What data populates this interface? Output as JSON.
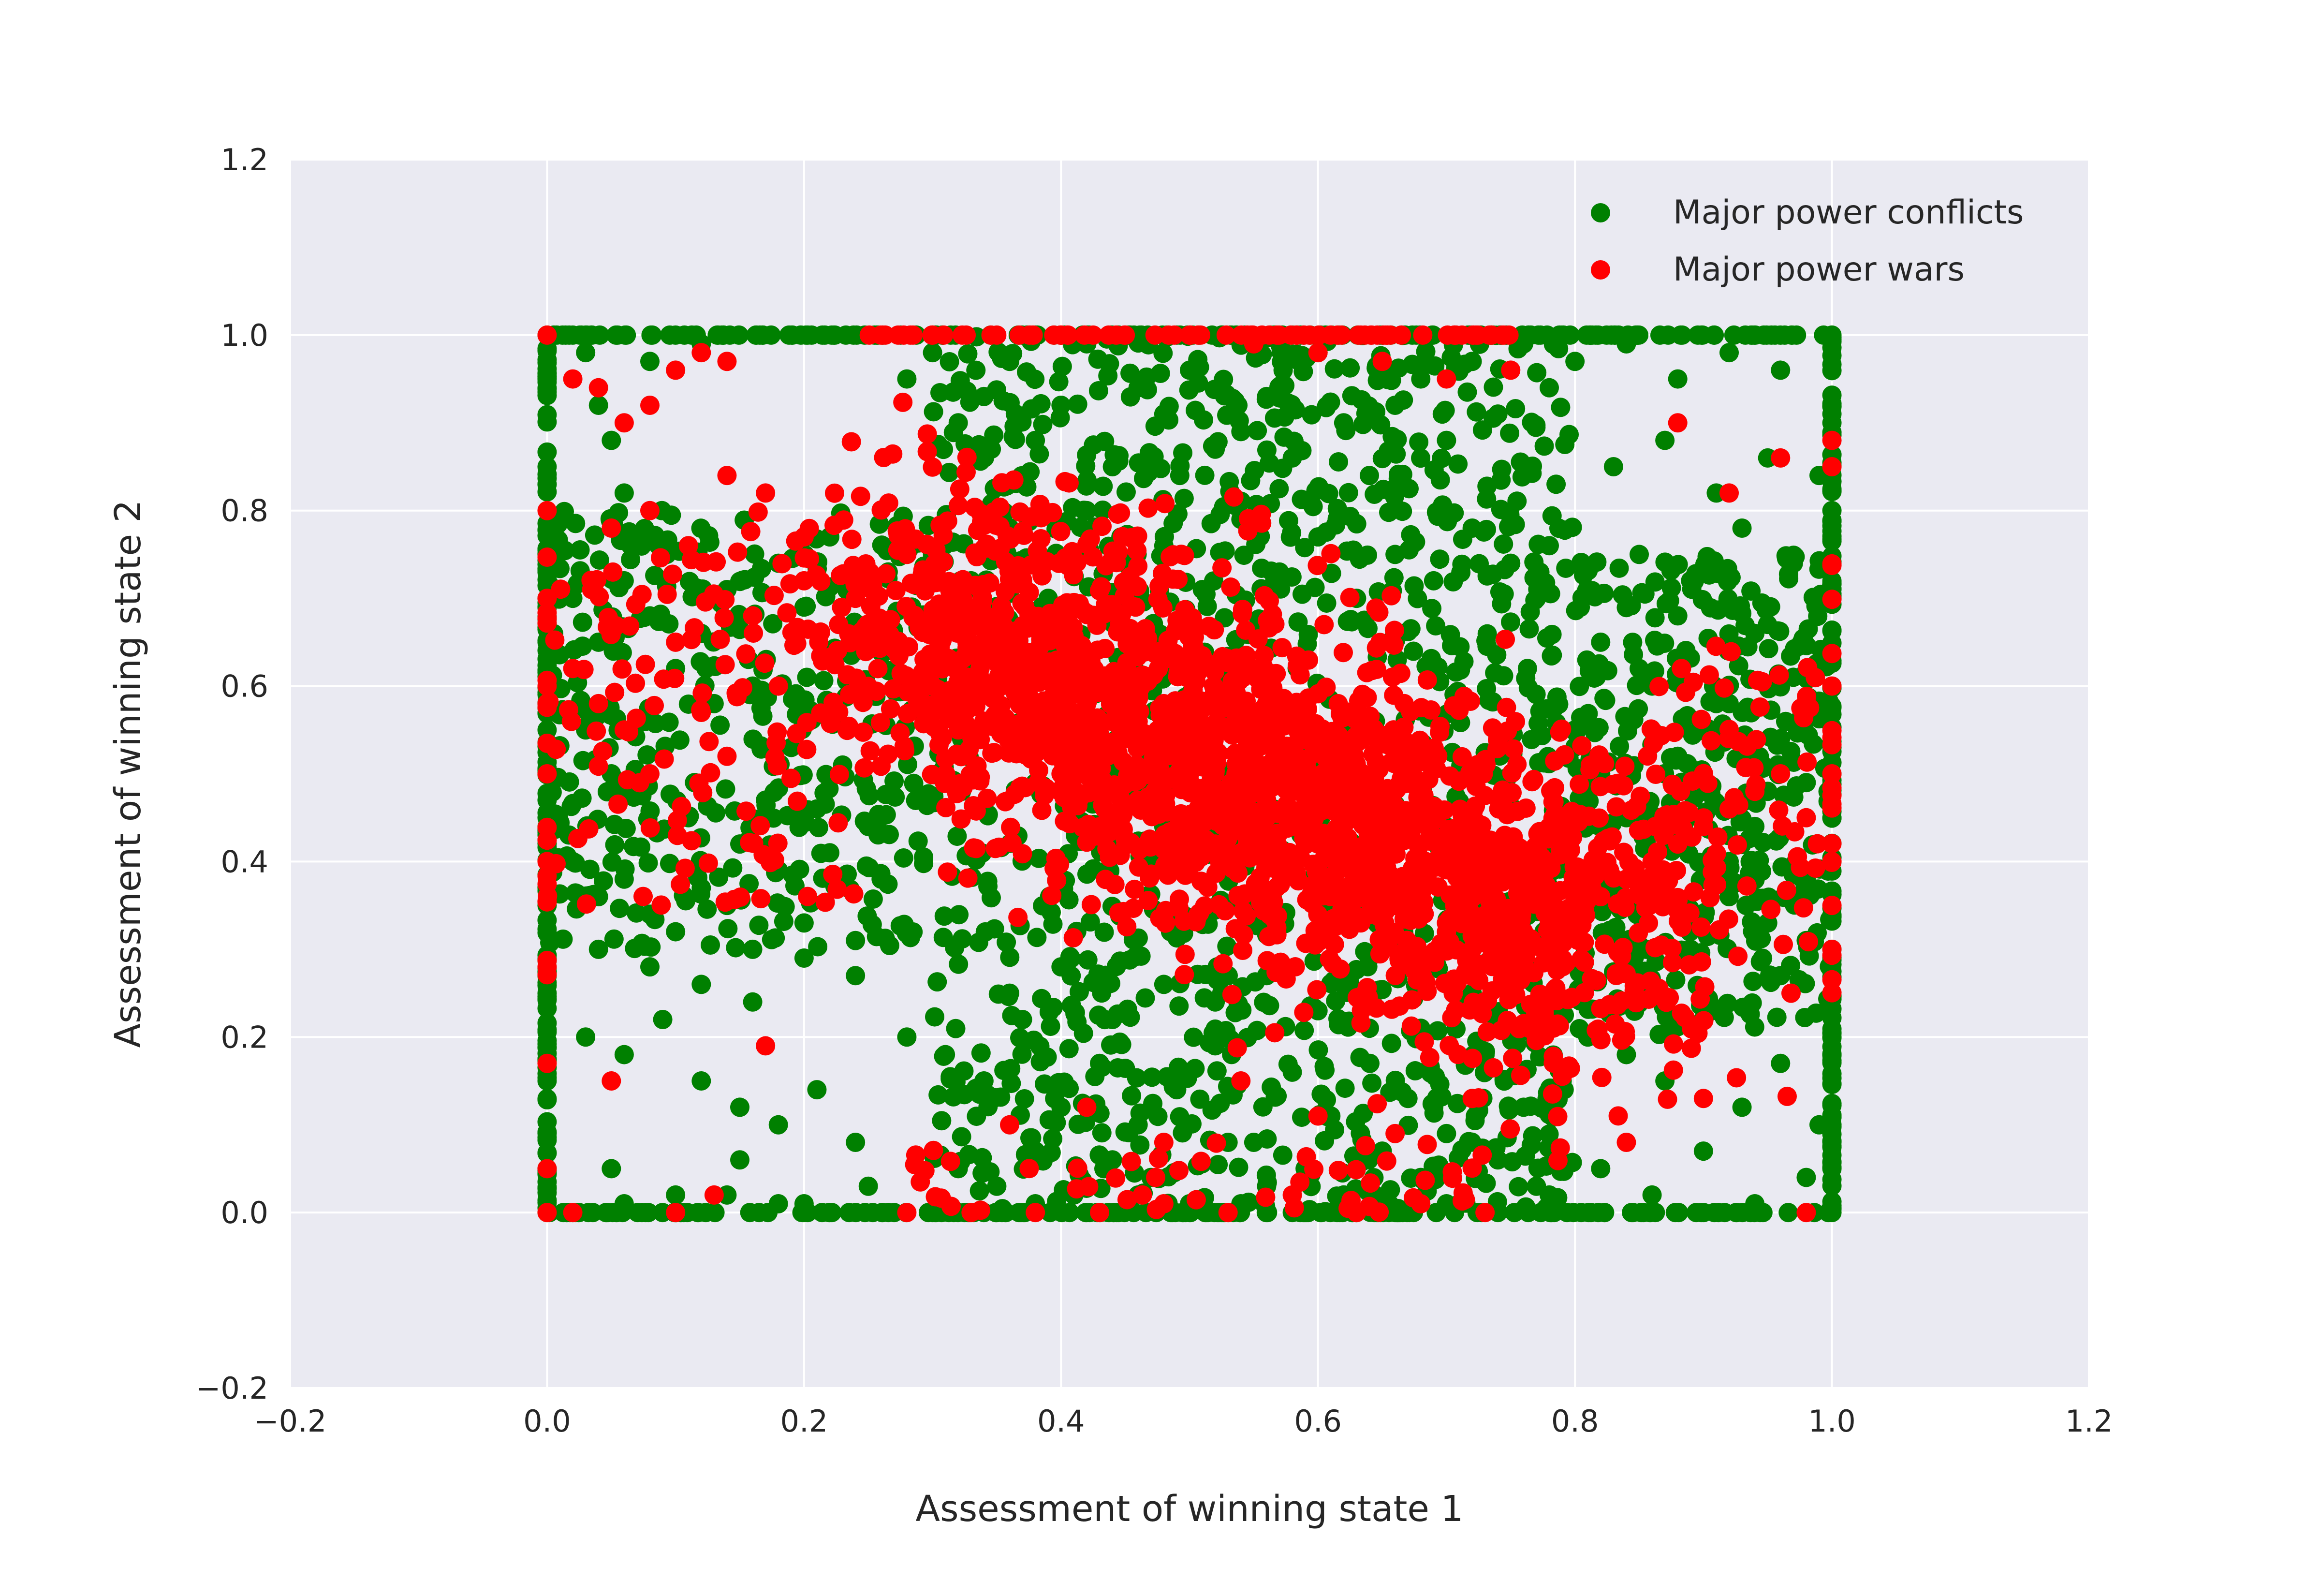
{
  "chart_data": {
    "type": "scatter",
    "title": "",
    "xlabel": "Assessment of winning state 1",
    "ylabel": "Assessment of winning state 2",
    "xlim": [
      -0.2,
      1.2
    ],
    "ylim": [
      -0.2,
      1.2
    ],
    "xticks": [
      -0.2,
      0.0,
      0.2,
      0.4,
      0.6,
      0.8,
      1.0,
      1.2
    ],
    "yticks": [
      -0.2,
      0.0,
      0.2,
      0.4,
      0.6,
      0.8,
      1.0,
      1.2
    ],
    "xtick_labels": [
      "−0.2",
      "0.0",
      "0.2",
      "0.4",
      "0.6",
      "0.8",
      "1.0",
      "1.2"
    ],
    "ytick_labels": [
      "−0.2",
      "0.0",
      "0.2",
      "0.4",
      "0.6",
      "0.8",
      "1.0",
      "1.2"
    ],
    "grid": true,
    "background": "#eaeaf2",
    "legend_position": "top-right",
    "series": [
      {
        "name": "Major power conflicts",
        "color": "#008000",
        "x": [
          0.0,
          0.0,
          0.0,
          0.0,
          0.0,
          0.0,
          0.0,
          0.0,
          0.0,
          0.0,
          0.0,
          0.0,
          0.02,
          0.03,
          0.04,
          0.05,
          0.06,
          0.08,
          0.1,
          0.12,
          0.02,
          0.04,
          0.06,
          0.08,
          0.1,
          0.12,
          0.14,
          0.16,
          0.18,
          0.2,
          0.22,
          0.24,
          0.03,
          0.05,
          0.07,
          0.09,
          0.11,
          0.13,
          0.15,
          0.17,
          0.19,
          0.21,
          0.23,
          0.25,
          0.02,
          0.04,
          0.06,
          0.08,
          0.1,
          0.12,
          0.14,
          0.16,
          0.18,
          0.2,
          0.22,
          0.24,
          0.26,
          0.03,
          0.06,
          0.09,
          0.12,
          0.15,
          0.18,
          0.21,
          0.24,
          0.05,
          0.1,
          0.15,
          0.2,
          0.25,
          0.02,
          0.06,
          0.1,
          0.14,
          0.18,
          0.22,
          0.04,
          0.08,
          0.12,
          0.16,
          0.2,
          0.24,
          0.28,
          0.3,
          0.32,
          0.34,
          0.36,
          0.38,
          0.4,
          0.42,
          0.44,
          0.46,
          0.48,
          0.5,
          0.52,
          0.54,
          0.56,
          0.58,
          0.6,
          0.62,
          0.64,
          0.66,
          0.68,
          0.7,
          0.72,
          0.74,
          0.76,
          0.78,
          0.3,
          0.33,
          0.36,
          0.39,
          0.42,
          0.45,
          0.48,
          0.51,
          0.54,
          0.57,
          0.6,
          0.63,
          0.66,
          0.69,
          0.72,
          0.75,
          0.78,
          0.28,
          0.31,
          0.34,
          0.37,
          0.4,
          0.43,
          0.46,
          0.49,
          0.52,
          0.55,
          0.58,
          0.61,
          0.64,
          0.67,
          0.7,
          0.73,
          0.76,
          0.79,
          0.32,
          0.35,
          0.38,
          0.41,
          0.44,
          0.47,
          0.5,
          0.53,
          0.56,
          0.59,
          0.62,
          0.65,
          0.68,
          0.71,
          0.74,
          0.77,
          0.3,
          0.34,
          0.38,
          0.42,
          0.46,
          0.5,
          0.54,
          0.58,
          0.62,
          0.66,
          0.7,
          0.74,
          0.78,
          0.36,
          0.4,
          0.44,
          0.48,
          0.52,
          0.56,
          0.6,
          0.64,
          0.68,
          0.72,
          0.76,
          0.8,
          0.82,
          0.84,
          0.86,
          0.88,
          0.9,
          0.92,
          0.94,
          0.96,
          0.98,
          1.0,
          1.0,
          1.0,
          1.0,
          1.0,
          1.0,
          1.0,
          1.0,
          1.0,
          1.0,
          1.0,
          1.0,
          0.82,
          0.85,
          0.88,
          0.91,
          0.94,
          0.97,
          0.8,
          0.83,
          0.86,
          0.89,
          0.92,
          0.95,
          0.98,
          0.81,
          0.84,
          0.87,
          0.9,
          0.93,
          0.96,
          0.99,
          0.82,
          0.86,
          0.9,
          0.94,
          0.98,
          0.8,
          0.84,
          0.88,
          0.92,
          0.96,
          0.83,
          0.87,
          0.91,
          0.95,
          0.99,
          0.85,
          0.89,
          0.93,
          0.97,
          0.81,
          0.88,
          0.95,
          0.92,
          0.84,
          0.9,
          0.96
        ],
        "y": [
          1.0,
          0.95,
          0.85,
          0.75,
          0.65,
          0.55,
          0.45,
          0.35,
          0.25,
          0.15,
          0.05,
          0.0,
          1.0,
          0.98,
          0.92,
          0.88,
          0.82,
          0.97,
          1.0,
          0.99,
          0.7,
          0.65,
          0.72,
          0.68,
          0.62,
          0.66,
          0.71,
          0.6,
          0.74,
          0.69,
          0.77,
          0.64,
          0.55,
          0.5,
          0.48,
          0.52,
          0.45,
          0.58,
          0.42,
          0.47,
          0.53,
          0.46,
          0.51,
          0.44,
          0.4,
          0.36,
          0.38,
          0.34,
          0.32,
          0.37,
          0.35,
          0.3,
          0.39,
          0.33,
          0.41,
          0.31,
          0.38,
          0.2,
          0.18,
          0.22,
          0.15,
          0.12,
          0.1,
          0.14,
          0.08,
          0.05,
          0.02,
          0.06,
          0.01,
          0.03,
          0.0,
          0.01,
          0.0,
          0.02,
          0.01,
          0.0,
          0.3,
          0.28,
          0.26,
          0.24,
          0.29,
          0.27,
          0.95,
          0.98,
          0.9,
          0.93,
          0.97,
          0.88,
          0.92,
          0.99,
          0.85,
          0.94,
          0.91,
          0.96,
          0.87,
          0.89,
          0.93,
          0.86,
          0.98,
          0.9,
          0.84,
          0.92,
          0.95,
          0.88,
          0.97,
          0.91,
          0.99,
          0.94,
          0.75,
          0.72,
          0.78,
          0.7,
          0.8,
          0.74,
          0.76,
          0.71,
          0.79,
          0.73,
          0.77,
          0.7,
          0.75,
          0.72,
          0.78,
          0.74,
          0.76,
          0.2,
          0.18,
          0.15,
          0.22,
          0.12,
          0.17,
          0.1,
          0.14,
          0.19,
          0.08,
          0.16,
          0.11,
          0.21,
          0.13,
          0.09,
          0.18,
          0.12,
          0.15,
          0.05,
          0.03,
          0.07,
          0.02,
          0.06,
          0.04,
          0.01,
          0.08,
          0.03,
          0.05,
          0.02,
          0.07,
          0.04,
          0.01,
          0.06,
          0.03,
          0.0,
          0.0,
          0.01,
          0.0,
          0.02,
          0.0,
          0.01,
          0.0,
          0.02,
          0.0,
          0.01,
          0.0,
          0.02,
          0.25,
          0.28,
          0.22,
          0.26,
          0.24,
          0.27,
          0.23,
          0.29,
          0.21,
          0.25,
          0.28,
          0.55,
          0.5,
          0.45,
          0.6,
          0.52,
          0.48,
          0.58,
          0.44,
          0.54,
          0.49,
          1.0,
          0.9,
          0.8,
          0.7,
          0.6,
          0.5,
          0.4,
          0.3,
          0.2,
          0.1,
          0.05,
          0.0,
          0.65,
          0.62,
          0.68,
          0.58,
          0.66,
          0.61,
          0.35,
          0.32,
          0.38,
          0.3,
          0.36,
          0.33,
          0.31,
          0.2,
          0.18,
          0.15,
          0.22,
          0.12,
          0.17,
          0.1,
          0.05,
          0.02,
          0.07,
          0.01,
          0.04,
          0.97,
          0.99,
          0.95,
          0.98,
          0.96,
          0.85,
          0.88,
          0.82,
          0.86,
          0.84,
          0.75,
          0.72,
          0.78,
          0.74,
          0.45,
          0.42,
          0.48,
          0.4,
          0.28,
          0.25,
          0.27
        ],
        "density_notes": ""
      },
      {
        "name": "Major power wars",
        "color": "#ff0000",
        "x": [
          0.0,
          0.0,
          0.0,
          0.0,
          0.0,
          0.0,
          0.0,
          0.0,
          0.0,
          0.02,
          0.04,
          0.06,
          0.08,
          0.1,
          0.12,
          0.14,
          0.16,
          0.18,
          0.2,
          0.22,
          0.24,
          0.26,
          0.28,
          0.3,
          0.32,
          0.34,
          0.36,
          0.38,
          0.4,
          0.42,
          0.44,
          0.46,
          0.48,
          0.5,
          0.52,
          0.54,
          0.56,
          0.58,
          0.6,
          0.62,
          0.64,
          0.66,
          0.68,
          0.7,
          0.72,
          0.74,
          0.3,
          0.32,
          0.34,
          0.36,
          0.38,
          0.4,
          0.42,
          0.44,
          0.46,
          0.48,
          0.5,
          0.52,
          0.54,
          0.56,
          0.58,
          0.6,
          0.62,
          0.64,
          0.66,
          0.68,
          0.7,
          0.72,
          0.74,
          0.76,
          0.78,
          0.8,
          0.82,
          0.84,
          0.86,
          0.88,
          0.9,
          0.92,
          0.94,
          0.96,
          0.98,
          1.0,
          1.0,
          1.0,
          1.0,
          1.0,
          0.05,
          0.08,
          0.11,
          0.14,
          0.17,
          0.2,
          0.02,
          0.04,
          0.06,
          0.08,
          0.1,
          0.12,
          0.14,
          0.3,
          0.35,
          0.4,
          0.45,
          0.5,
          0.55,
          0.6,
          0.65,
          0.7,
          0.75,
          0.28,
          0.33,
          0.38,
          0.43,
          0.48,
          0.53,
          0.58,
          0.63,
          0.68,
          0.73,
          0.36,
          0.42,
          0.48,
          0.54,
          0.6,
          0.66,
          0.72,
          0.0,
          0.02,
          0.05,
          0.1,
          0.13,
          0.17,
          0.88,
          0.92,
          0.96,
          1.0,
          1.0,
          0.84,
          0.9,
          0.98,
          0.32,
          0.36,
          0.4,
          0.44,
          0.48,
          0.52,
          0.56,
          0.6,
          0.64,
          0.68,
          0.72
        ],
        "y": [
          1.0,
          0.8,
          0.7,
          0.6,
          0.5,
          0.4,
          0.28,
          0.17,
          0.0,
          0.62,
          0.58,
          0.55,
          0.5,
          0.65,
          0.57,
          0.52,
          0.68,
          0.6,
          0.72,
          0.63,
          0.7,
          0.66,
          0.75,
          0.72,
          0.7,
          0.67,
          0.65,
          0.62,
          0.6,
          0.58,
          0.56,
          0.54,
          0.52,
          0.5,
          0.48,
          0.47,
          0.45,
          0.44,
          0.42,
          0.4,
          0.38,
          0.36,
          0.34,
          0.32,
          0.3,
          0.28,
          0.6,
          0.58,
          0.56,
          0.55,
          0.53,
          0.52,
          0.5,
          0.48,
          0.47,
          0.46,
          0.44,
          0.42,
          0.41,
          0.4,
          0.39,
          0.38,
          0.37,
          0.36,
          0.35,
          0.34,
          0.33,
          0.32,
          0.31,
          0.32,
          0.33,
          0.35,
          0.36,
          0.38,
          0.4,
          0.42,
          0.44,
          0.46,
          0.48,
          0.5,
          0.45,
          0.6,
          0.5,
          0.4,
          0.35,
          0.3,
          0.78,
          0.8,
          0.76,
          0.84,
          0.82,
          0.77,
          0.95,
          0.94,
          0.9,
          0.92,
          0.96,
          0.98,
          0.97,
          1.0,
          1.0,
          1.0,
          1.0,
          1.0,
          0.99,
          0.98,
          0.97,
          0.95,
          0.96,
          0.0,
          0.0,
          0.0,
          0.0,
          0.01,
          0.0,
          0.02,
          0.0,
          0.01,
          0.0,
          0.1,
          0.12,
          0.08,
          0.15,
          0.11,
          0.09,
          0.13,
          0.05,
          0.0,
          0.15,
          0.0,
          0.02,
          0.19,
          0.9,
          0.82,
          0.86,
          0.85,
          0.88,
          0.08,
          0.13,
          0.0,
          0.55,
          0.6,
          0.5,
          0.45,
          0.58,
          0.52,
          0.47,
          0.43,
          0.4,
          0.36,
          0.33
        ]
      }
    ]
  }
}
